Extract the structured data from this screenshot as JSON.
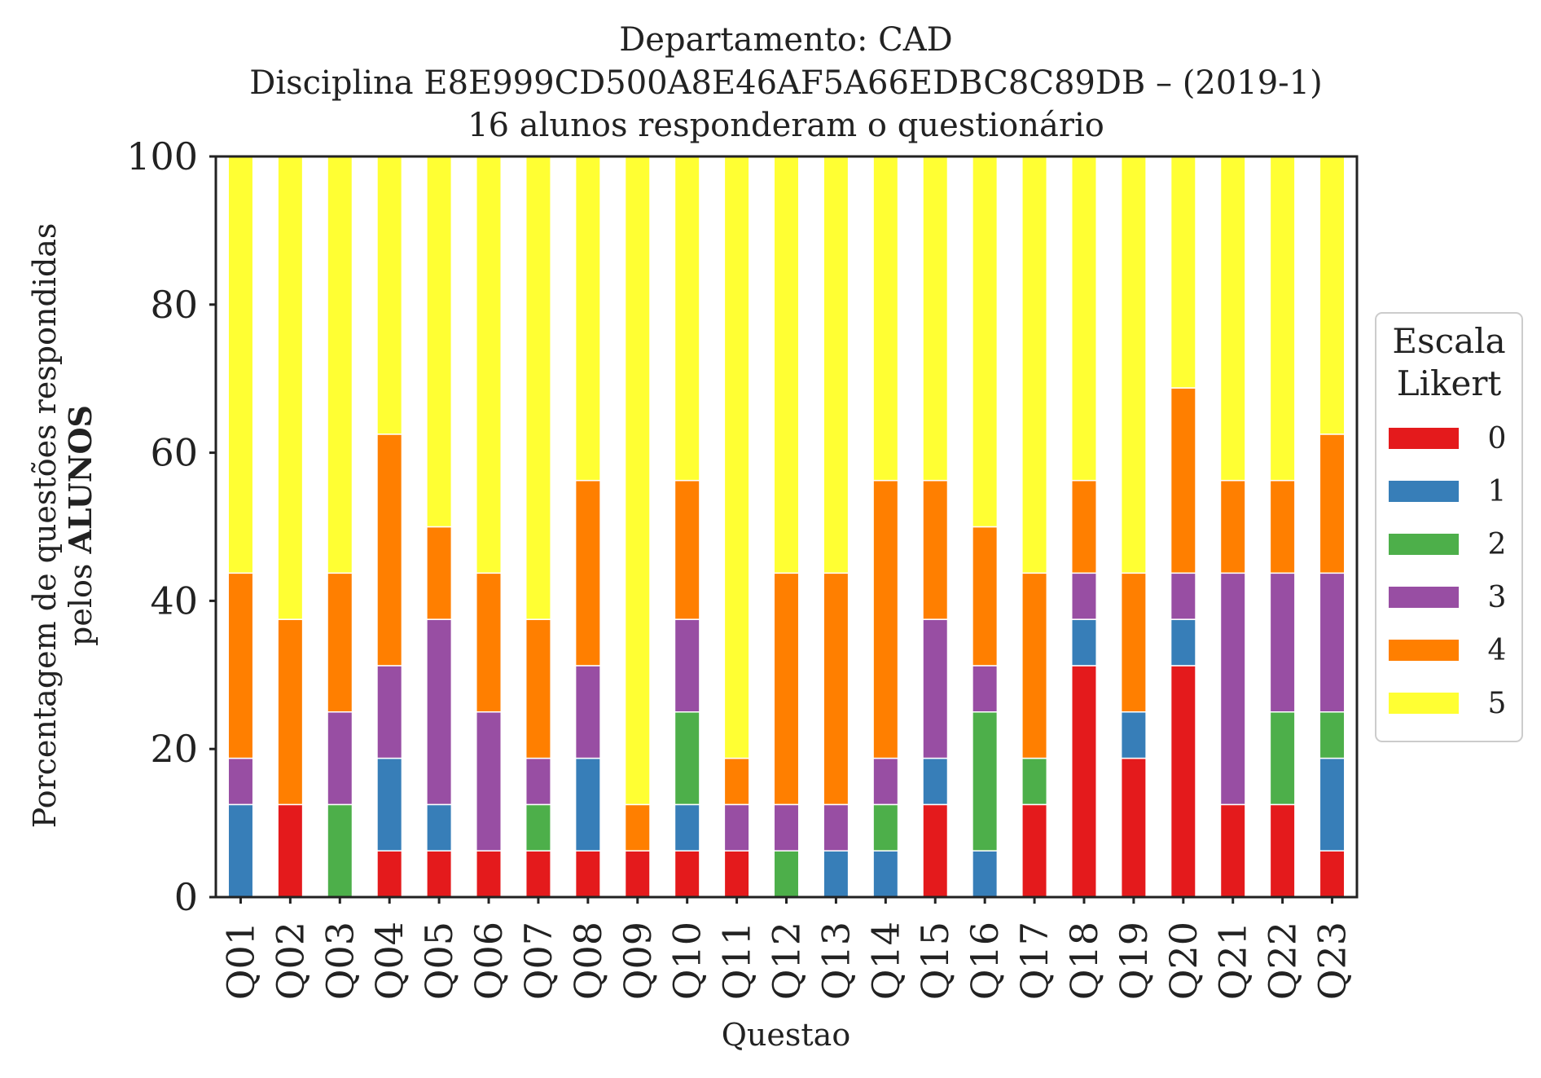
{
  "chart_data": {
    "type": "bar",
    "stacked": true,
    "title": [
      "Departamento: CAD",
      "Disciplina E8E999CD500A8E46AF5A66EDBC8C89DB – (2019-1)",
      "16 alunos responderam o questionário"
    ],
    "xlabel": "Questao",
    "ylabel_line1": "Porcentagem de questões respondidas",
    "ylabel_line2_prefix": "pelos ",
    "ylabel_line2_bold": "ALUNOS",
    "ylim": [
      0,
      100
    ],
    "yticks": [
      "0",
      "20",
      "40",
      "60",
      "80",
      "100"
    ],
    "grid": false,
    "legend": {
      "title": [
        "Escala",
        "Likert"
      ],
      "placement": "right-center outside",
      "entries": [
        "0",
        "1",
        "2",
        "3",
        "4",
        "5"
      ]
    },
    "colors": [
      "#e41a1c",
      "#377eb8",
      "#4daf4a",
      "#984ea3",
      "#ff7f00",
      "#ffff33"
    ],
    "categories": [
      "Q01",
      "Q02",
      "Q03",
      "Q04",
      "Q05",
      "Q06",
      "Q07",
      "Q08",
      "Q09",
      "Q10",
      "Q11",
      "Q12",
      "Q13",
      "Q14",
      "Q15",
      "Q16",
      "Q17",
      "Q18",
      "Q19",
      "Q20",
      "Q21",
      "Q22",
      "Q23"
    ],
    "series": [
      {
        "name": "0",
        "values": [
          0,
          12.5,
          0,
          6.25,
          6.25,
          6.25,
          6.25,
          6.25,
          6.25,
          6.25,
          6.25,
          0,
          0,
          0,
          12.5,
          0,
          12.5,
          31.25,
          18.75,
          31.25,
          12.5,
          12.5,
          6.25
        ]
      },
      {
        "name": "1",
        "values": [
          12.5,
          0,
          0,
          12.5,
          6.25,
          0,
          0,
          12.5,
          0,
          6.25,
          0,
          0,
          6.25,
          6.25,
          6.25,
          6.25,
          0,
          6.25,
          6.25,
          6.25,
          0,
          0,
          12.5
        ]
      },
      {
        "name": "2",
        "values": [
          0,
          0,
          12.5,
          0,
          0,
          0,
          6.25,
          0,
          0,
          12.5,
          0,
          6.25,
          0,
          6.25,
          0,
          18.75,
          6.25,
          0,
          0,
          0,
          0,
          12.5,
          6.25
        ]
      },
      {
        "name": "3",
        "values": [
          6.25,
          0,
          12.5,
          12.5,
          25,
          18.75,
          6.25,
          12.5,
          0,
          12.5,
          6.25,
          6.25,
          6.25,
          6.25,
          18.75,
          6.25,
          0,
          6.25,
          0,
          6.25,
          31.25,
          18.75,
          18.75
        ]
      },
      {
        "name": "4",
        "values": [
          25,
          25,
          18.75,
          31.25,
          12.5,
          18.75,
          18.75,
          25,
          6.25,
          18.75,
          6.25,
          31.25,
          31.25,
          37.5,
          18.75,
          18.75,
          25,
          12.5,
          18.75,
          25,
          12.5,
          12.5,
          18.75
        ]
      },
      {
        "name": "5",
        "values": [
          56.25,
          62.5,
          56.25,
          37.5,
          50,
          56.25,
          62.5,
          43.75,
          87.5,
          43.75,
          81.25,
          56.25,
          56.25,
          43.75,
          43.75,
          50,
          56.25,
          43.75,
          56.25,
          31.25,
          43.75,
          43.75,
          37.5
        ]
      }
    ]
  }
}
